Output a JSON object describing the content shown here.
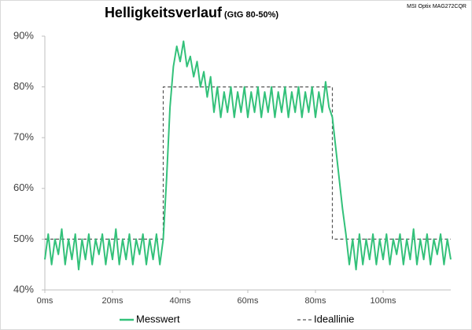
{
  "chart_data": {
    "type": "line",
    "title": "Helligkeitsverlauf",
    "subtitle": "(GtG 80-50%)",
    "annotation": "MSI Optix MAG272CQR",
    "xlim": [
      0,
      120
    ],
    "ylim": [
      40,
      90
    ],
    "xticks": [
      {
        "value": 0,
        "label": "0ms"
      },
      {
        "value": 20,
        "label": "20ms"
      },
      {
        "value": 40,
        "label": "40ms"
      },
      {
        "value": 60,
        "label": "60ms"
      },
      {
        "value": 80,
        "label": "80ms"
      },
      {
        "value": 100,
        "label": "100ms"
      }
    ],
    "yticks": [
      {
        "value": 40,
        "label": "40%"
      },
      {
        "value": 50,
        "label": "50%"
      },
      {
        "value": 60,
        "label": "60%"
      },
      {
        "value": 70,
        "label": "70%"
      },
      {
        "value": 80,
        "label": "80%"
      },
      {
        "value": 90,
        "label": "90%"
      }
    ],
    "grid": false,
    "legend": "bottom",
    "series": [
      {
        "name": "Messwert",
        "color": "#33c17a",
        "dash": false,
        "x": [
          0,
          1,
          2,
          3,
          4,
          5,
          6,
          7,
          8,
          9,
          10,
          11,
          12,
          13,
          14,
          15,
          16,
          17,
          18,
          19,
          20,
          21,
          22,
          23,
          24,
          25,
          26,
          27,
          28,
          29,
          30,
          31,
          32,
          33,
          34,
          35,
          36,
          37,
          38,
          39,
          40,
          41,
          42,
          43,
          44,
          45,
          46,
          47,
          48,
          49,
          50,
          51,
          52,
          53,
          54,
          55,
          56,
          57,
          58,
          59,
          60,
          61,
          62,
          63,
          64,
          65,
          66,
          67,
          68,
          69,
          70,
          71,
          72,
          73,
          74,
          75,
          76,
          77,
          78,
          79,
          80,
          81,
          82,
          83,
          84,
          85,
          86,
          87,
          88,
          89,
          90,
          91,
          92,
          93,
          94,
          95,
          96,
          97,
          98,
          99,
          100,
          101,
          102,
          103,
          104,
          105,
          106,
          107,
          108,
          109,
          110,
          111,
          112,
          113,
          114,
          115,
          116,
          117,
          118,
          119,
          120
        ],
        "values": [
          46,
          51,
          45,
          50,
          47,
          52,
          45,
          50,
          46,
          51,
          44,
          50,
          46,
          51,
          45,
          50,
          47,
          51,
          45,
          50,
          46,
          52,
          45,
          50,
          46,
          51,
          45,
          50,
          47,
          51,
          45,
          50,
          46,
          51,
          45,
          50,
          62,
          76,
          84,
          88,
          85,
          89,
          84,
          86,
          82,
          85,
          80,
          83,
          78,
          82,
          75,
          80,
          74,
          79,
          75,
          80,
          74,
          79,
          75,
          80,
          74,
          79,
          75,
          80,
          74,
          79,
          75,
          80,
          74,
          79,
          75,
          80,
          74,
          79,
          75,
          80,
          74,
          79,
          75,
          80,
          74,
          79,
          75,
          81,
          76,
          74,
          68,
          62,
          56,
          51,
          45,
          50,
          44,
          51,
          45,
          50,
          46,
          51,
          45,
          50,
          46,
          51,
          45,
          50,
          47,
          51,
          45,
          50,
          46,
          52,
          45,
          50,
          46,
          51,
          45,
          50,
          47,
          51,
          45,
          50,
          46
        ]
      },
      {
        "name": "Ideallinie",
        "color": "#555555",
        "dash": true,
        "x": [
          0,
          35,
          35,
          85,
          85,
          120
        ],
        "values": [
          50,
          50,
          80,
          80,
          50,
          50
        ]
      }
    ]
  }
}
